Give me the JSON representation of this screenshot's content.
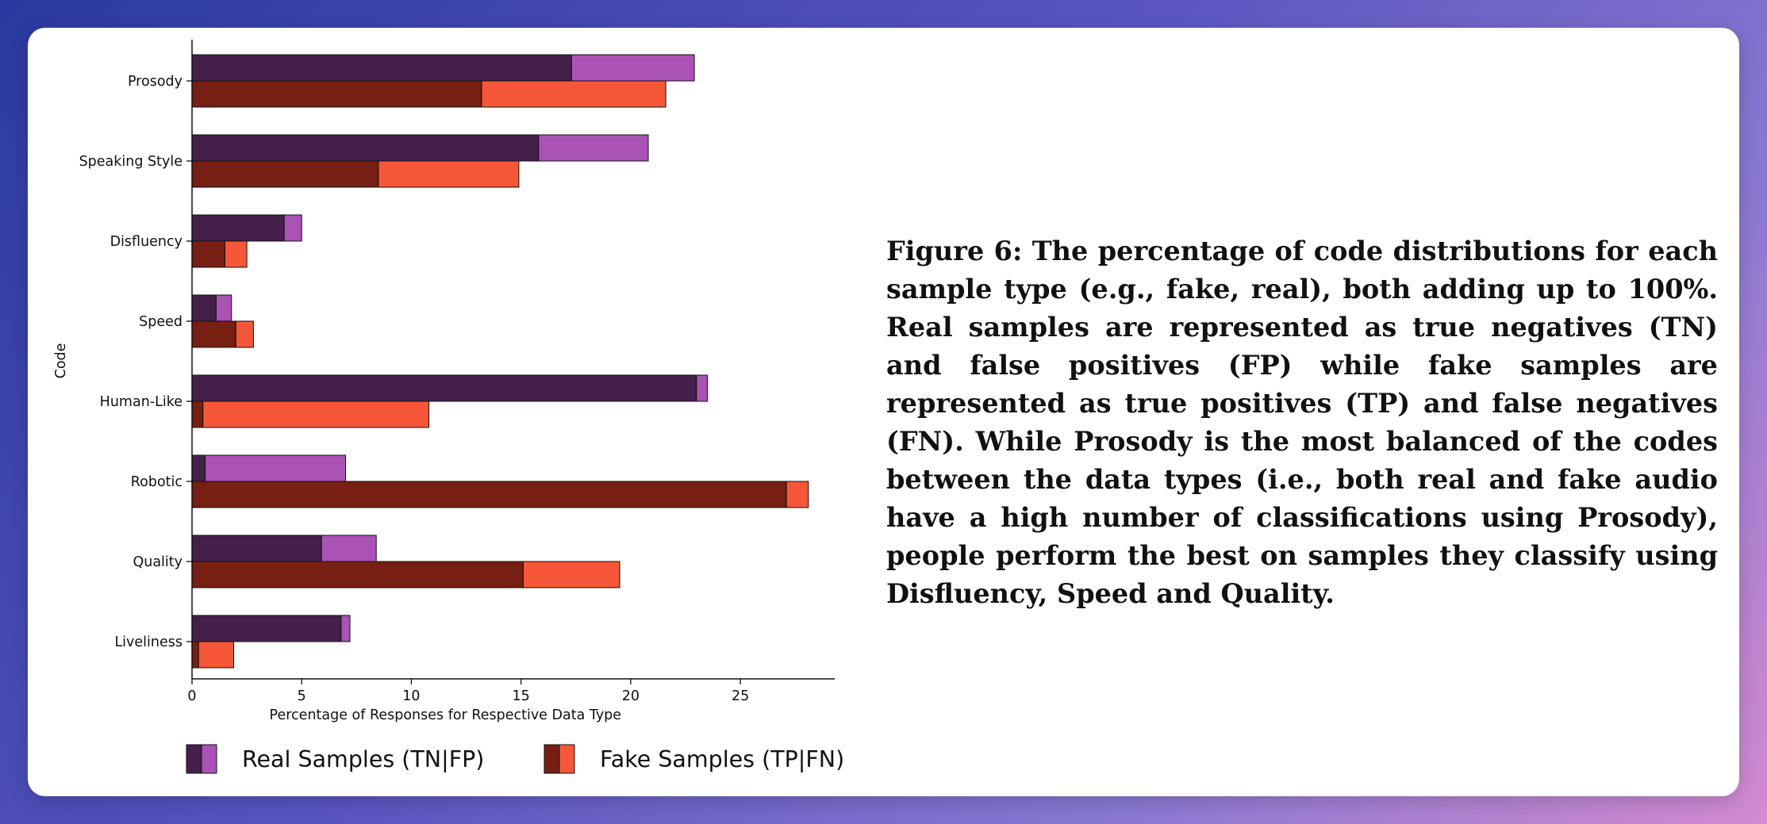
{
  "caption": "Figure 6: The percentage of code distributions for each sample type (e.g., fake, real), both adding up to 100%. Real samples are represented as true negatives (TN) and false positives (FP) while fake samples are represented as true positives (TP) and false negatives (FN). While Prosody is the most balanced of the codes between the data types (i.e., both real and fake audio have a high number of classifications using Prosody), people perform the best on samples they classify using Disfluency, Speed and Quality.",
  "colors": {
    "real_tn": "#45204a",
    "real_fp": "#aa52b5",
    "fake_tp": "#761f12",
    "fake_fn": "#f55738"
  },
  "chart_data": {
    "type": "bar",
    "orientation": "horizontal",
    "stacked": true,
    "categories": [
      "Prosody",
      "Speaking Style",
      "Disfluency",
      "Speed",
      "Human-Like",
      "Robotic",
      "Quality",
      "Liveliness"
    ],
    "series": [
      {
        "name": "Real Samples (TN|FP)",
        "group": "real",
        "parts": [
          "TN",
          "FP"
        ],
        "tn": [
          17.3,
          15.8,
          4.2,
          1.1,
          23.0,
          0.6,
          5.9,
          6.8
        ],
        "fp": [
          5.6,
          5.0,
          0.8,
          0.7,
          0.5,
          6.4,
          2.5,
          0.4
        ]
      },
      {
        "name": "Fake Samples (TP|FN)",
        "group": "fake",
        "parts": [
          "TP",
          "FN"
        ],
        "tp": [
          13.2,
          8.5,
          1.5,
          2.0,
          0.5,
          27.1,
          15.1,
          0.3
        ],
        "fn": [
          8.4,
          6.4,
          1.0,
          0.8,
          10.3,
          1.0,
          4.4,
          1.6
        ]
      }
    ],
    "xlabel": "Percentage of Responses for Respective Data Type",
    "ylabel": "Code",
    "xlim": [
      0,
      29.3
    ],
    "xticks": [
      0,
      5,
      10,
      15,
      20,
      25
    ],
    "grid": false,
    "legend_position": "bottom"
  }
}
